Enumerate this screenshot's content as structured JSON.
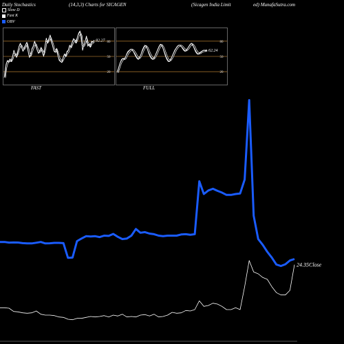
{
  "header": {
    "left": "Daily Stochastics",
    "center": "(14,3,3) Charts for SICAGEN",
    "right1": "(Sicagen  India  Limit",
    "right2": "ed) MunafaSutra.com"
  },
  "legend": [
    {
      "label": "Slow  D",
      "color": "#000000"
    },
    {
      "label": "Fast K",
      "color": "#ffffff"
    },
    {
      "label": "OBV",
      "color": "#1a5cff"
    }
  ],
  "colors": {
    "obv": "#1a5cff",
    "close": "#ffffff",
    "level_line": "#9a6b2a"
  },
  "chart_data": [
    {
      "type": "line",
      "title": "FAST",
      "ylim": [
        0,
        100
      ],
      "levels": [
        80,
        50,
        20
      ],
      "last_value_label": "82.27",
      "series": [
        {
          "name": "Fast K",
          "values": [
            10,
            35,
            42,
            38,
            45,
            40,
            50,
            62,
            55,
            48,
            58,
            70,
            76,
            68,
            60,
            66,
            72,
            78,
            60,
            48,
            52,
            66,
            70,
            80,
            72,
            62,
            56,
            60,
            68,
            58,
            50,
            70,
            86,
            76,
            84,
            92,
            80,
            70,
            60,
            58,
            66,
            52,
            42,
            40,
            38,
            48,
            55,
            50,
            60,
            62,
            72,
            68,
            78,
            85,
            82,
            76,
            88,
            96,
            100,
            88,
            62,
            72,
            80,
            90,
            70,
            74,
            68,
            80,
            78,
            82
          ]
        },
        {
          "values": [
            8,
            28,
            38,
            40,
            42,
            41,
            46,
            55,
            54,
            51,
            56,
            65,
            72,
            70,
            64,
            65,
            70,
            75,
            66,
            54,
            52,
            60,
            67,
            75,
            73,
            66,
            59,
            59,
            65,
            61,
            54,
            63,
            78,
            78,
            82,
            88,
            82,
            74,
            64,
            60,
            63,
            56,
            47,
            43,
            40,
            44,
            50,
            51,
            56,
            59,
            67,
            68,
            74,
            80,
            81,
            78,
            84,
            91,
            96,
            91,
            73,
            71,
            76,
            85,
            76,
            74,
            70,
            76,
            77,
            80
          ]
        }
      ]
    },
    {
      "type": "line",
      "title": "FULL",
      "ylim": [
        0,
        100
      ],
      "levels": [
        80,
        50,
        20
      ],
      "last_value_label": "62.24",
      "series": [
        {
          "name": "Fast K",
          "values": [
            20,
            30,
            38,
            44,
            46,
            44,
            48,
            55,
            60,
            62,
            64,
            64,
            60,
            55,
            50,
            46,
            44,
            48,
            54,
            62,
            68,
            72,
            70,
            64,
            56,
            50,
            46,
            44,
            46,
            52,
            58,
            64,
            70,
            74,
            72,
            66,
            58,
            50,
            44,
            40,
            40,
            44,
            50,
            56,
            62,
            66,
            70,
            72,
            72,
            70,
            66,
            62,
            60,
            62,
            66,
            70,
            74,
            76,
            72,
            66,
            60,
            56,
            54,
            56,
            58,
            60,
            62,
            62,
            61,
            62
          ]
        },
        {
          "values": [
            18,
            26,
            34,
            40,
            44,
            45,
            46,
            51,
            56,
            59,
            62,
            63,
            62,
            59,
            55,
            50,
            47,
            47,
            51,
            57,
            63,
            68,
            70,
            67,
            61,
            55,
            50,
            47,
            46,
            49,
            54,
            60,
            66,
            71,
            72,
            69,
            63,
            56,
            49,
            44,
            42,
            43,
            47,
            52,
            58,
            63,
            67,
            70,
            71,
            71,
            69,
            66,
            63,
            62,
            64,
            67,
            71,
            74,
            73,
            70,
            65,
            60,
            57,
            56,
            57,
            59,
            60,
            61,
            61,
            62
          ]
        }
      ]
    },
    {
      "type": "line",
      "series": [
        {
          "name": "OBV",
          "values": [
            53.6,
            53.6,
            52.8,
            53.0,
            52.9,
            52.0,
            51.6,
            51.6,
            52.6,
            53.6,
            51.6,
            51.8,
            52.4,
            52.4,
            52.0,
            31.6,
            32.0,
            54.8,
            58.4,
            61.6,
            61.2,
            61.6,
            60.4,
            62.4,
            62.0,
            64.8,
            60.8,
            57.6,
            58.4,
            62.4,
            71.6,
            66.4,
            67.2,
            65.2,
            64.4,
            62.4,
            61.6,
            62.4,
            62.4,
            62.4,
            64.0,
            64.4,
            63.6,
            64.4,
            137.6,
            120.0,
            125.0,
            127.2,
            124.4,
            122.0,
            118.8,
            118.8,
            120.0,
            120.8,
            140.0,
            250.0,
            90.0,
            57.6,
            49.6,
            40.0,
            32.0,
            22.4,
            20.4,
            22.8,
            28.0,
            30.0
          ]
        },
        {
          "name": "Close",
          "values": [
            6.8,
            6.8,
            6.6,
            5.2,
            5.0,
            4.6,
            4.4,
            4.6,
            5.4,
            4.0,
            3.6,
            3.6,
            3.4,
            2.8,
            2.6,
            1.8,
            1.6,
            2.2,
            2.2,
            2.6,
            3.0,
            2.8,
            3.0,
            3.4,
            2.8,
            3.6,
            3.2,
            4.0,
            2.8,
            3.0,
            2.8,
            3.6,
            3.8,
            3.2,
            4.0,
            2.8,
            3.0,
            3.6,
            4.8,
            4.4,
            4.6,
            5.6,
            5.4,
            6.0,
            9.8,
            7.4,
            7.8,
            8.8,
            8.4,
            7.4,
            6.0,
            6.0,
            6.8,
            6.0,
            16.0,
            27.4,
            22.4,
            21.6,
            20.0,
            19.2,
            16.0,
            13.4,
            12.4,
            12.4,
            14.4,
            25.6
          ]
        }
      ],
      "last_value_label": "24.35Close"
    }
  ],
  "panels": {
    "fast_label": "FAST",
    "full_label": "FULL"
  }
}
